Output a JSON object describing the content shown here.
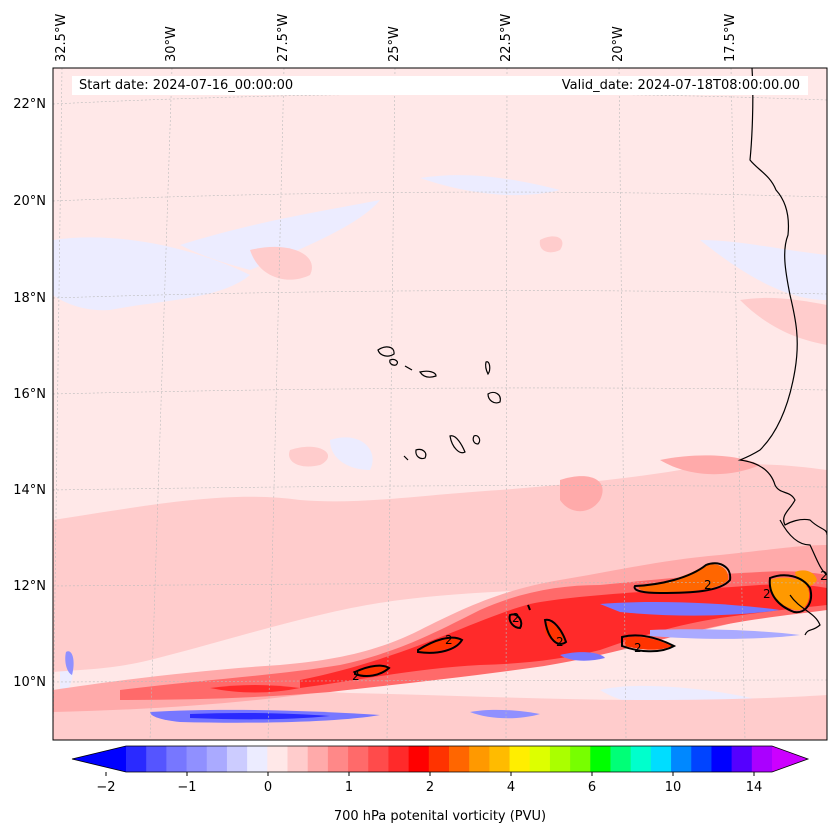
{
  "header": {
    "start_date": "Start date: 2024-07-16_00:00:00",
    "valid_date": "Valid_date: 2024-07-18T08:00:00.00"
  },
  "longitude_labels": [
    "32.5°W",
    "30°W",
    "27.5°W",
    "25°W",
    "22.5°W",
    "20°W",
    "17.5°W"
  ],
  "latitude_labels": [
    "22°N",
    "20°N",
    "18°N",
    "16°N",
    "14°N",
    "12°N",
    "10°N"
  ],
  "colorbar": {
    "label": "700 hPa potenital vorticity (PVU)",
    "ticks": [
      "−2",
      "−1",
      "0",
      "1",
      "2",
      "4",
      "6",
      "10",
      "14"
    ],
    "colors": [
      "#0000ff",
      "#2a2aff",
      "#5555ff",
      "#7777ff",
      "#9090ff",
      "#aaaaff",
      "#ccccff",
      "#ececff",
      "#ffe8e8",
      "#ffcccc",
      "#ffaaaa",
      "#ff8888",
      "#ff6a6a",
      "#ff4b4b",
      "#ff2a2a",
      "#ff0000",
      "#ff3300",
      "#ff6600",
      "#ff9900",
      "#ffbb00",
      "#ffee00",
      "#ddff00",
      "#aaff00",
      "#77ff00",
      "#00ff00",
      "#00ff77",
      "#00ffcc",
      "#00ddff",
      "#0088ff",
      "#0044ff",
      "#0000ff",
      "#5500ff",
      "#aa00ff",
      "#cc00ff"
    ]
  },
  "contour_labels": [
    "2",
    "2",
    "2",
    "2",
    "2",
    "2",
    "2",
    "2"
  ],
  "colors": {
    "background": "#ffe8e8",
    "land_outline": "#000000",
    "grid": "#bbbbbb"
  }
}
